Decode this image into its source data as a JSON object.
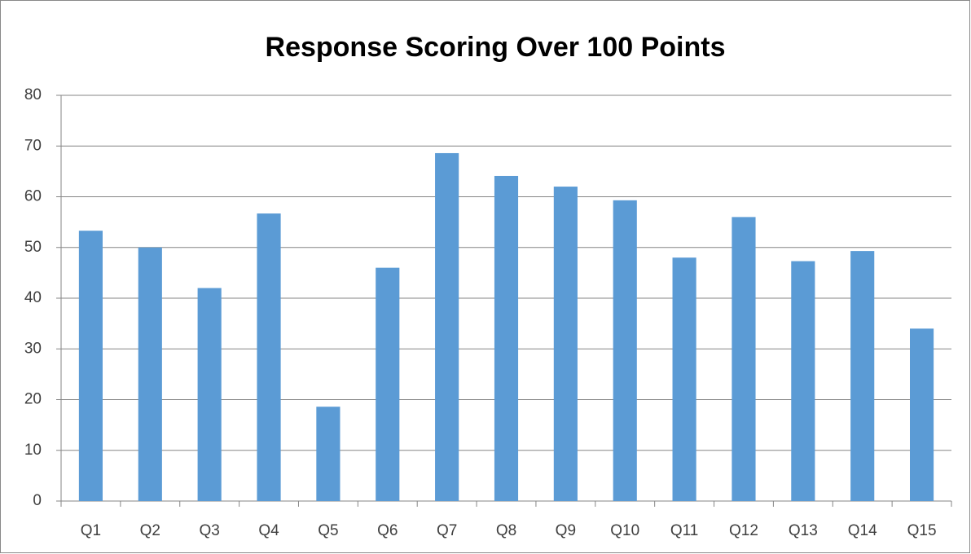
{
  "chart_data": {
    "type": "bar",
    "title": "Response Scoring Over 100 Points",
    "categories": [
      "Q1",
      "Q2",
      "Q3",
      "Q4",
      "Q5",
      "Q6",
      "Q7",
      "Q8",
      "Q9",
      "Q10",
      "Q11",
      "Q12",
      "Q13",
      "Q14",
      "Q15"
    ],
    "values": [
      53.3,
      50,
      42,
      56.7,
      18.6,
      46,
      68.6,
      64.1,
      62,
      59.3,
      48,
      56,
      47.3,
      49.3,
      34
    ],
    "color": "#5b9bd5",
    "ylim": [
      0,
      80
    ],
    "yticks": [
      0,
      10,
      20,
      30,
      40,
      50,
      60,
      70,
      80
    ],
    "grid": true
  }
}
